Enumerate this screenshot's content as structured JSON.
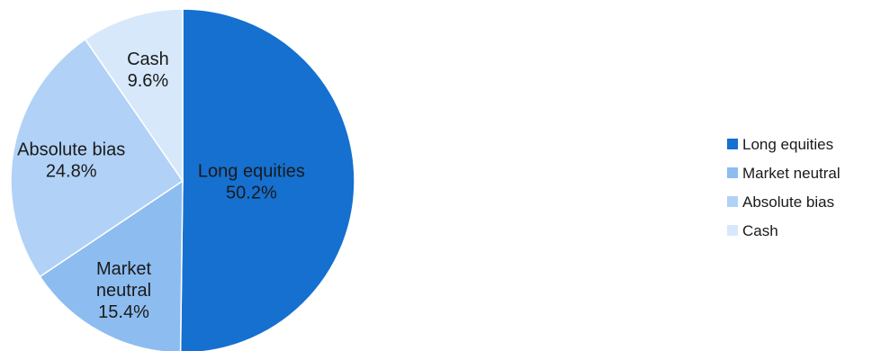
{
  "chart_data": {
    "type": "pie",
    "slices": [
      {
        "label": "Long equities",
        "value": 50.2,
        "value_label": "50.2%",
        "color": "#1570d0"
      },
      {
        "label": "Market neutral",
        "value": 15.4,
        "value_label": "15.4%",
        "color": "#8dbcf0"
      },
      {
        "label": "Absolute bias",
        "value": 24.8,
        "value_label": "24.8%",
        "color": "#b1d2f6"
      },
      {
        "label": "Cash",
        "value": 9.6,
        "value_label": "9.6%",
        "color": "#d7e8fb"
      }
    ],
    "start": "12 o'clock, clockwise",
    "legend": {
      "placement": "right",
      "entries": [
        "Long equities",
        "Market neutral",
        "Absolute bias",
        "Cash"
      ]
    }
  }
}
